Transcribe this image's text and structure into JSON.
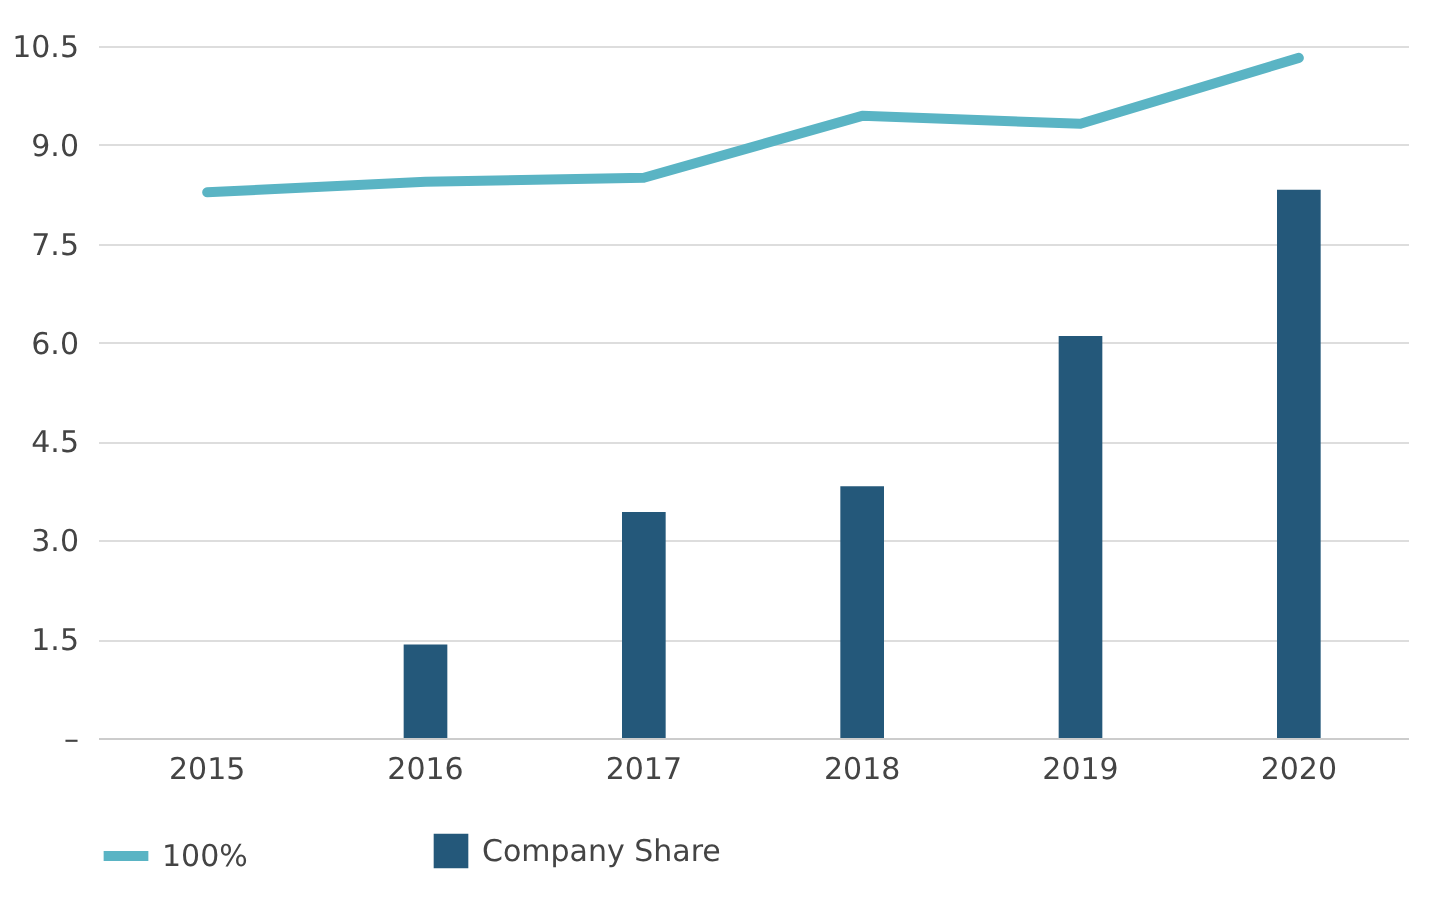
{
  "chart_data": {
    "type": "bar",
    "categories": [
      "2015",
      "2016",
      "2017",
      "2018",
      "2019",
      "2020"
    ],
    "series": [
      {
        "name": "100%",
        "type": "line",
        "color": "#5ab4c4",
        "values": [
          8.28,
          8.44,
          8.5,
          9.44,
          9.32,
          10.32
        ]
      },
      {
        "name": "Company Share",
        "color": "#24587a",
        "values": [
          null,
          1.42,
          3.43,
          3.82,
          6.1,
          8.32
        ]
      }
    ],
    "ylim": [
      0,
      10.5
    ],
    "yticks": [
      {
        "value": 0,
        "label": "–"
      },
      1.5,
      {
        "value": 3,
        "label": "3.0"
      },
      4.5,
      {
        "value": 6,
        "label": "6.0"
      },
      7.5,
      {
        "value": 9,
        "label": "9.0"
      },
      10.5
    ],
    "grid": "y",
    "legend": "bottom left"
  }
}
